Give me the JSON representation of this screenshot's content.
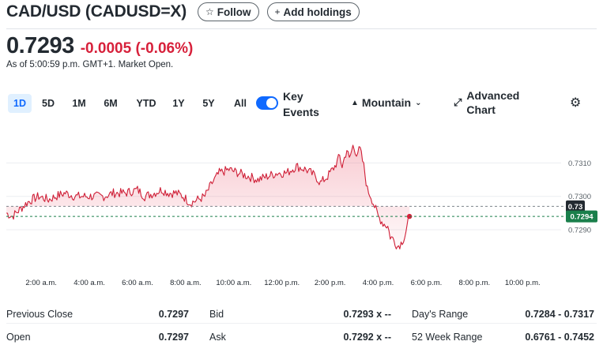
{
  "header": {
    "title": "CAD/USD (CADUSD=X)",
    "follow_label": "Follow",
    "add_holdings_label": "Add holdings"
  },
  "quote": {
    "price": "0.7293",
    "change": "-0.0005",
    "change_percent": "(-0.06%)",
    "as_of": "As of 5:00:59 p.m. GMT+1. Market Open."
  },
  "toolbar": {
    "ranges": [
      "1D",
      "5D",
      "1M",
      "6M",
      "YTD",
      "1Y",
      "5Y",
      "All"
    ],
    "active_range": "1D",
    "key_events_line1": "Key",
    "key_events_line2": "Events",
    "key_events_on": true,
    "chart_type": "Mountain",
    "advanced_line1": "Advanced",
    "advanced_line2": "Chart"
  },
  "colors": {
    "accent": "#0f69ff",
    "negative": "#d7213b",
    "badge_dark": "#232a31",
    "badge_green": "#1a7f4b"
  },
  "chart_data": {
    "type": "area",
    "x_ticks": [
      "2:00 a.m.",
      "4:00 a.m.",
      "6:00 a.m.",
      "8:00 a.m.",
      "10:00 a.m.",
      "12:00 p.m.",
      "2:00 p.m.",
      "4:00 p.m.",
      "6:00 p.m.",
      "8:00 p.m.",
      "10:00 p.m."
    ],
    "x_tick_hours": [
      2,
      4,
      6,
      8,
      10,
      12,
      14,
      16,
      18,
      20,
      22
    ],
    "x_range_hours": [
      0.55,
      23.6
    ],
    "y_ticks": [
      "0.7310",
      "0.7300",
      "0.7290"
    ],
    "y_tick_values": [
      0.731,
      0.73,
      0.729
    ],
    "ylim": [
      0.72775,
      0.732
    ],
    "previous_close": 0.7297,
    "previous_close_label": "0.73",
    "current_price": 0.7294,
    "current_price_label": "0.7294",
    "series": [
      {
        "x": [
          0.55,
          0.8,
          1.1,
          1.4,
          1.6,
          1.9,
          2.3,
          2.6,
          3.0,
          3.4,
          3.8,
          4.2,
          4.6,
          5.0,
          5.5,
          6.0,
          6.3,
          6.7,
          7.0,
          7.3,
          7.6,
          7.9,
          8.2,
          8.5,
          8.8,
          9.1,
          9.4,
          9.8,
          10.2,
          10.6,
          11.0,
          11.4,
          11.8,
          12.2,
          12.6,
          13.0,
          13.4,
          13.6,
          13.9,
          14.2,
          14.4,
          14.5,
          14.7,
          14.8,
          14.95,
          15.1,
          15.25,
          15.4,
          15.55,
          15.7,
          15.85,
          16.0,
          16.2,
          16.4,
          16.5,
          16.65,
          16.8,
          16.95,
          17.1,
          17.3
        ],
        "y": [
          0.7295,
          0.7294,
          0.7296,
          0.7298,
          0.7299,
          0.73,
          0.7299,
          0.73,
          0.7301,
          0.73,
          0.73,
          0.73,
          0.73,
          0.7301,
          0.7301,
          0.7302,
          0.73,
          0.7301,
          0.7302,
          0.7301,
          0.7301,
          0.73,
          0.7298,
          0.7299,
          0.73,
          0.7304,
          0.7307,
          0.7308,
          0.7307,
          0.7306,
          0.7305,
          0.7306,
          0.7307,
          0.7307,
          0.7309,
          0.7308,
          0.7306,
          0.7304,
          0.7306,
          0.7309,
          0.7312,
          0.7309,
          0.7314,
          0.7311,
          0.7315,
          0.7313,
          0.7314,
          0.7309,
          0.7302,
          0.73,
          0.7297,
          0.7294,
          0.7292,
          0.7291,
          0.7288,
          0.7287,
          0.7285,
          0.7286,
          0.7288,
          0.7294
        ]
      }
    ]
  },
  "stats": {
    "col1": [
      {
        "label": "Previous Close",
        "value": "0.7297"
      },
      {
        "label": "Open",
        "value": "0.7297"
      }
    ],
    "col2": [
      {
        "label": "Bid",
        "value": "0.7293 x --"
      },
      {
        "label": "Ask",
        "value": "0.7292 x --"
      }
    ],
    "col3": [
      {
        "label": "Day's Range",
        "value": "0.7284 - 0.7317"
      },
      {
        "label": "52 Week Range",
        "value": "0.6761 - 0.7452"
      }
    ]
  }
}
